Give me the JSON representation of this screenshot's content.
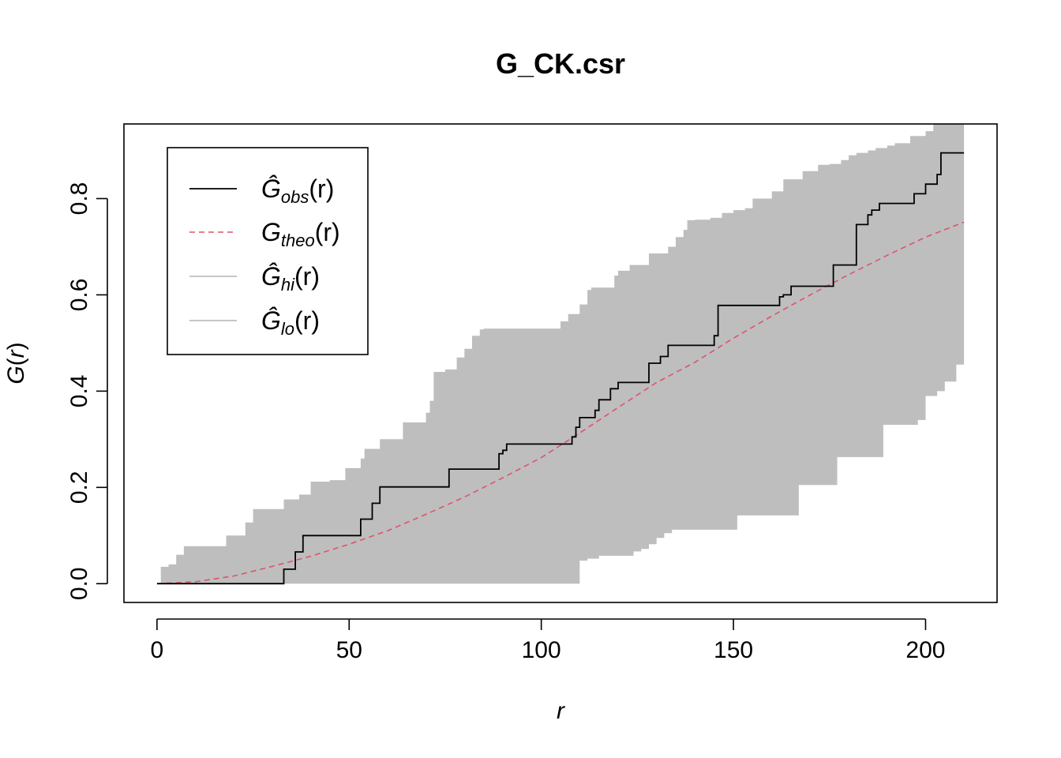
{
  "chart_data": {
    "type": "line",
    "title": "G_CK.csr",
    "xlabel": "r",
    "ylabel": "G(r)",
    "xlim": [
      -8.6,
      218.6
    ],
    "ylim": [
      -0.039,
      0.955
    ],
    "x_ticks": [
      0,
      50,
      100,
      150,
      200
    ],
    "x_tick_labels": [
      "0",
      "50",
      "100",
      "150",
      "200"
    ],
    "y_ticks": [
      0.0,
      0.2,
      0.4,
      0.6,
      0.8
    ],
    "y_tick_labels": [
      "0.0",
      "0.2",
      "0.4",
      "0.6",
      "0.8"
    ],
    "legend": {
      "position": "top-left",
      "entries": [
        {
          "symbol": "Ĝ",
          "sub": "obs",
          "arg": "(r)",
          "color": "#000000",
          "style": "solid"
        },
        {
          "symbol": "G",
          "sub": "theo",
          "arg": "(r)",
          "color": "#DF536B",
          "style": "dashed"
        },
        {
          "symbol": "Ĝ",
          "sub": "hi",
          "arg": "(r)",
          "color": "#BEBEBE",
          "style": "solid"
        },
        {
          "symbol": "Ĝ",
          "sub": "lo",
          "arg": "(r)",
          "color": "#BEBEBE",
          "style": "solid"
        }
      ]
    },
    "colors": {
      "obs": "#000000",
      "theo": "#DF536B",
      "envelope": "#BEBEBE"
    },
    "series": [
      {
        "name": "obs",
        "style": "step",
        "x": [
          0,
          32,
          33,
          36,
          38,
          51,
          53,
          56,
          58,
          75,
          76,
          88,
          89,
          90,
          91,
          107,
          108,
          109,
          110,
          111,
          114,
          115,
          117,
          118,
          120,
          127,
          128,
          130,
          131,
          133,
          144,
          145,
          146,
          161,
          162,
          163,
          165,
          175,
          176,
          181,
          182,
          185,
          186,
          188,
          196,
          197,
          199,
          200,
          202,
          203,
          204,
          210
        ],
        "y": [
          0.0,
          0.0,
          0.03,
          0.066,
          0.1,
          0.1,
          0.134,
          0.167,
          0.201,
          0.201,
          0.238,
          0.238,
          0.27,
          0.277,
          0.29,
          0.29,
          0.305,
          0.325,
          0.345,
          0.345,
          0.36,
          0.382,
          0.382,
          0.405,
          0.418,
          0.418,
          0.458,
          0.458,
          0.472,
          0.495,
          0.495,
          0.515,
          0.578,
          0.578,
          0.596,
          0.6,
          0.618,
          0.618,
          0.662,
          0.662,
          0.746,
          0.766,
          0.776,
          0.79,
          0.79,
          0.81,
          0.81,
          0.83,
          0.83,
          0.85,
          0.895,
          0.895
        ]
      },
      {
        "name": "theo",
        "style": "line",
        "x": [
          0,
          10,
          20,
          30,
          40,
          50,
          60,
          70,
          80,
          90,
          100,
          110,
          120,
          130,
          140,
          150,
          160,
          170,
          180,
          190,
          200,
          210
        ],
        "y": [
          0.0,
          0.004,
          0.016,
          0.036,
          0.057,
          0.082,
          0.11,
          0.144,
          0.18,
          0.22,
          0.262,
          0.313,
          0.366,
          0.418,
          0.46,
          0.51,
          0.556,
          0.6,
          0.642,
          0.682,
          0.72,
          0.751
        ]
      },
      {
        "name": "hi",
        "style": "step",
        "x": [
          0,
          1,
          3,
          5,
          7,
          16,
          18,
          23,
          25,
          33,
          36,
          37,
          40,
          44,
          45,
          49,
          51,
          53,
          54,
          58,
          60,
          64,
          68,
          70,
          71,
          72,
          75,
          78,
          80,
          82,
          84,
          85,
          87,
          88,
          92,
          105,
          107,
          110,
          112,
          113,
          115,
          119,
          120,
          123,
          125,
          128,
          132,
          133,
          135,
          137,
          138,
          140,
          142,
          144,
          147,
          150,
          153,
          155,
          160,
          163,
          168,
          172,
          175,
          178,
          180,
          182,
          183,
          185,
          187,
          190,
          192,
          196,
          200,
          202,
          205,
          210
        ],
        "y": [
          0.0,
          0.035,
          0.04,
          0.06,
          0.078,
          0.078,
          0.1,
          0.127,
          0.155,
          0.175,
          0.175,
          0.185,
          0.212,
          0.212,
          0.215,
          0.24,
          0.24,
          0.26,
          0.28,
          0.3,
          0.3,
          0.335,
          0.335,
          0.355,
          0.38,
          0.44,
          0.445,
          0.47,
          0.488,
          0.515,
          0.528,
          0.53,
          0.53,
          0.53,
          0.53,
          0.545,
          0.56,
          0.58,
          0.61,
          0.615,
          0.615,
          0.64,
          0.65,
          0.662,
          0.662,
          0.686,
          0.686,
          0.7,
          0.72,
          0.735,
          0.755,
          0.756,
          0.756,
          0.76,
          0.77,
          0.776,
          0.78,
          0.8,
          0.815,
          0.84,
          0.857,
          0.87,
          0.872,
          0.88,
          0.89,
          0.895,
          0.895,
          0.9,
          0.905,
          0.91,
          0.915,
          0.93,
          0.94,
          0.955,
          0.955,
          0.955
        ]
      },
      {
        "name": "lo",
        "style": "step",
        "x": [
          0,
          109,
          110,
          112,
          115,
          122,
          124,
          126,
          128,
          130,
          132,
          134,
          150,
          151,
          160,
          161,
          165,
          167,
          176,
          177,
          182,
          189,
          192,
          194,
          198,
          200,
          203,
          205,
          208,
          210
        ],
        "y": [
          0.0,
          0.0,
          0.048,
          0.052,
          0.058,
          0.058,
          0.067,
          0.072,
          0.082,
          0.095,
          0.105,
          0.112,
          0.112,
          0.142,
          0.142,
          0.142,
          0.142,
          0.205,
          0.205,
          0.263,
          0.263,
          0.33,
          0.33,
          0.33,
          0.34,
          0.39,
          0.4,
          0.42,
          0.455,
          0.455
        ]
      }
    ]
  }
}
